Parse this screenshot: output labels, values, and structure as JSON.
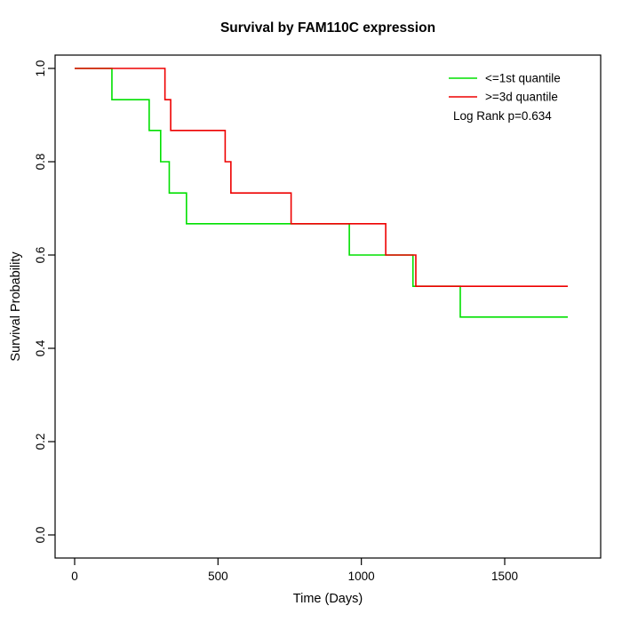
{
  "chart_data": {
    "type": "line",
    "subtype": "kaplan-meier-step",
    "title": "Survival by FAM110C expression",
    "xlabel": "Time (Days)",
    "ylabel": "Survival Probability",
    "xlim": [
      0,
      1780
    ],
    "ylim": [
      0.0,
      1.0
    ],
    "grid": false,
    "x_ticks": [
      0,
      500,
      1000,
      1500
    ],
    "x_tick_labels": [
      "0",
      "500",
      "1000",
      "1500"
    ],
    "y_ticks": [
      0.0,
      0.2,
      0.4,
      0.6,
      0.8,
      1.0
    ],
    "y_tick_labels": [
      "0.0",
      "0.2",
      "0.4",
      "0.6",
      "0.8",
      "1.0"
    ],
    "legend_position": "top-right",
    "annotation": "Log Rank p=0.634",
    "colors": {
      "low_group": "#00e000",
      "high_group": "#ee0000",
      "axis": "#000000"
    },
    "series": [
      {
        "name": "<=1st quantile",
        "color": "#00e000",
        "steps": [
          [
            0,
            1.0
          ],
          [
            130,
            0.933
          ],
          [
            260,
            0.867
          ],
          [
            300,
            0.8
          ],
          [
            330,
            0.733
          ],
          [
            390,
            0.667
          ],
          [
            958,
            0.6
          ],
          [
            1180,
            0.533
          ],
          [
            1345,
            0.467
          ],
          [
            1720,
            0.467
          ]
        ]
      },
      {
        "name": ">=3d quantile",
        "color": "#ee0000",
        "steps": [
          [
            0,
            1.0
          ],
          [
            315,
            0.933
          ],
          [
            335,
            0.867
          ],
          [
            525,
            0.8
          ],
          [
            545,
            0.733
          ],
          [
            755,
            0.667
          ],
          [
            1085,
            0.6
          ],
          [
            1190,
            0.533
          ],
          [
            1720,
            0.533
          ]
        ]
      }
    ]
  }
}
